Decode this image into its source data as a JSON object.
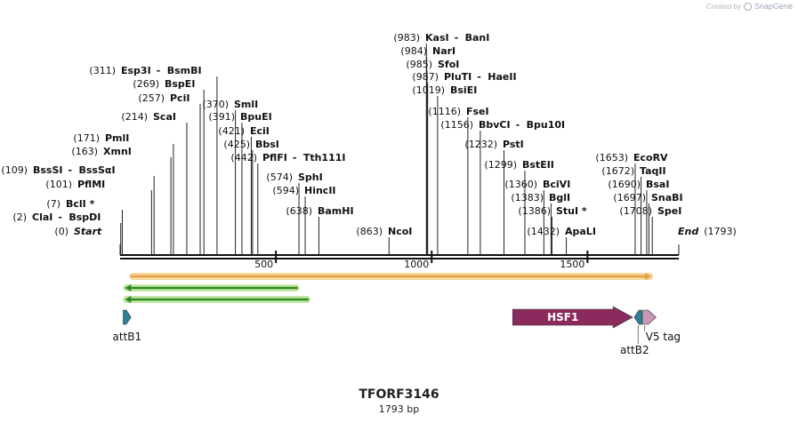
{
  "credit": {
    "prefix": "Created by",
    "brand": "SnapGene"
  },
  "map": {
    "name": "TFORF3146",
    "length_label": "1793 bp",
    "length": 1793
  },
  "ticks": [
    500,
    1000,
    1500
  ],
  "enzymes": [
    {
      "name": "Start",
      "pos": 0,
      "italic": true
    },
    {
      "name": "ClaI",
      "alias": "BspDI",
      "pos": 2
    },
    {
      "name": "BclI *",
      "pos": 7
    },
    {
      "name": "PflMI",
      "pos": 101
    },
    {
      "name": "BssSI",
      "alias": "BssSαI",
      "pos": 109
    },
    {
      "name": "XmnI",
      "pos": 163
    },
    {
      "name": "PmlI",
      "pos": 171
    },
    {
      "name": "ScaI",
      "pos": 214
    },
    {
      "name": "PciI",
      "pos": 257
    },
    {
      "name": "BspEI",
      "pos": 269
    },
    {
      "name": "Esp3I",
      "alias": "BsmBI",
      "pos": 311
    },
    {
      "name": "SmlI",
      "pos": 370
    },
    {
      "name": "BpuEI",
      "pos": 391
    },
    {
      "name": "EciI",
      "pos": 421
    },
    {
      "name": "BbsI",
      "pos": 425
    },
    {
      "name": "PflFI",
      "alias": "Tth111I",
      "pos": 442
    },
    {
      "name": "SphI",
      "pos": 574
    },
    {
      "name": "HincII",
      "pos": 594
    },
    {
      "name": "BamHI",
      "pos": 638
    },
    {
      "name": "NcoI",
      "pos": 863
    },
    {
      "name": "KasI",
      "alias": "BanI",
      "pos": 983
    },
    {
      "name": "NarI",
      "pos": 984
    },
    {
      "name": "SfoI",
      "pos": 985
    },
    {
      "name": "PluTI",
      "alias": "HaeII",
      "pos": 987
    },
    {
      "name": "BsiEI",
      "pos": 1019
    },
    {
      "name": "FseI",
      "pos": 1116
    },
    {
      "name": "BbvCI",
      "alias": "Bpu10I",
      "pos": 1156
    },
    {
      "name": "PstI",
      "pos": 1232
    },
    {
      "name": "BstEII",
      "pos": 1299
    },
    {
      "name": "BciVI",
      "pos": 1360
    },
    {
      "name": "BglI",
      "pos": 1383
    },
    {
      "name": "StuI *",
      "pos": 1386
    },
    {
      "name": "ApaLI",
      "pos": 1432
    },
    {
      "name": "EcoRV",
      "pos": 1653
    },
    {
      "name": "TaqII",
      "pos": 1672
    },
    {
      "name": "BsaI",
      "pos": 1690
    },
    {
      "name": "SnaBI",
      "pos": 1697
    },
    {
      "name": "SpeI",
      "pos": 1708
    },
    {
      "name": "End",
      "pos": 1793,
      "italic": true
    }
  ],
  "features": [
    {
      "name": "attB1",
      "start": 10,
      "end": 35,
      "direction": "forward",
      "color": "#2f7f96"
    },
    {
      "name": "HSF1",
      "start": 1260,
      "end": 1645,
      "direction": "forward",
      "color": "#8b2a5c"
    },
    {
      "name": "attB2",
      "start": 1650,
      "end": 1675,
      "direction": "reverse",
      "color": "#2f7f96"
    },
    {
      "name": "V5 tag",
      "start": 1678,
      "end": 1720,
      "direction": "forward",
      "color": "#c996b3"
    }
  ],
  "orfs": [
    {
      "start": 35,
      "end": 1705,
      "direction": "forward",
      "fill": "#e6a24a",
      "halo": "#f6d79c"
    },
    {
      "start": 15,
      "end": 570,
      "direction": "reverse",
      "fill": "#2f8a2a",
      "halo": "#c4e6a2"
    },
    {
      "start": 15,
      "end": 605,
      "direction": "reverse",
      "fill": "#2f8a2a",
      "halo": "#c4e6a2"
    }
  ],
  "colors": {
    "backbone": "#111111",
    "cut_line": "#222222"
  }
}
